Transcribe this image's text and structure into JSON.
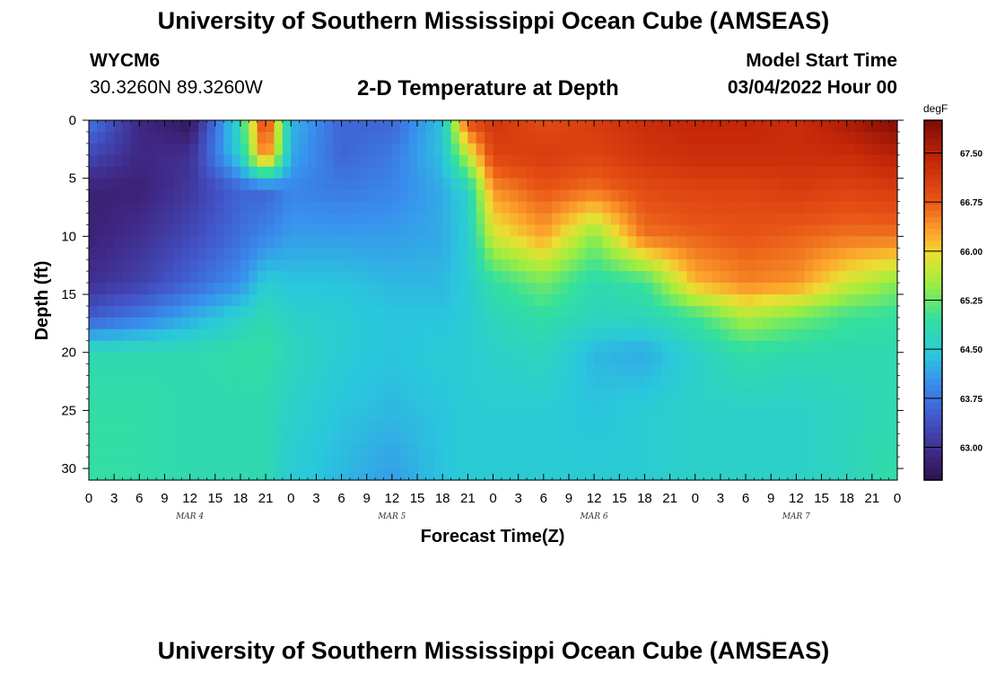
{
  "header": {
    "title": "University of Southern Mississippi Ocean Cube (AMSEAS)",
    "station": "WYCM6",
    "coordinates": "30.3260N  89.3260W",
    "plot_title": "2-D Temperature at Depth",
    "model_start_label": "Model Start Time",
    "model_start_value": "03/04/2022 Hour 00"
  },
  "footer": {
    "title": "University of Southern Mississippi Ocean Cube (AMSEAS)"
  },
  "chart_data": {
    "type": "heatmap",
    "title": "2-D Temperature at Depth",
    "xlabel": "Forecast Time(Z)",
    "ylabel": "Depth (ft)",
    "x_hours_range": [
      0,
      96
    ],
    "x_tick_step_hours": 3,
    "x_tick_labels": [
      "0",
      "3",
      "6",
      "9",
      "12",
      "15",
      "18",
      "21",
      "0",
      "3",
      "6",
      "9",
      "12",
      "15",
      "18",
      "21",
      "0",
      "3",
      "6",
      "9",
      "12",
      "15",
      "18",
      "21",
      "0",
      "3",
      "6",
      "9",
      "12",
      "15",
      "18",
      "21",
      "0"
    ],
    "day_labels": [
      {
        "label": "MAR 4",
        "hour": 12
      },
      {
        "label": "MAR 5",
        "hour": 36
      },
      {
        "label": "MAR 6",
        "hour": 60
      },
      {
        "label": "MAR 7",
        "hour": 84
      }
    ],
    "ylim": [
      0,
      31
    ],
    "y_tick_values": [
      0,
      5,
      10,
      15,
      20,
      25,
      30
    ],
    "y_tick_labels": [
      "0",
      "5",
      "10",
      "15",
      "20",
      "25",
      "30"
    ],
    "colorbar": {
      "unit": "degF",
      "range": [
        62.5,
        68.0
      ],
      "ticks": [
        63.0,
        63.75,
        64.5,
        65.25,
        66.0,
        66.75,
        67.5
      ],
      "tick_labels": [
        "63.00",
        "63.75",
        "64.50",
        "65.25",
        "66.00",
        "66.75",
        "67.50"
      ]
    },
    "grid_hours": [
      0,
      6,
      12,
      18,
      21,
      24,
      30,
      36,
      42,
      45,
      48,
      54,
      60,
      66,
      72,
      78,
      84,
      90,
      96
    ],
    "grid_depths": [
      0,
      3,
      6,
      10,
      14,
      17,
      20,
      25,
      31
    ],
    "values": [
      [
        63.8,
        62.9,
        62.6,
        64.8,
        67.2,
        64.3,
        63.6,
        63.6,
        64.4,
        66.9,
        67.2,
        66.9,
        67.1,
        67.3,
        67.4,
        67.4,
        67.3,
        67.6,
        68.0
      ],
      [
        63.3,
        62.9,
        63.0,
        64.6,
        66.7,
        64.2,
        63.6,
        63.8,
        64.4,
        65.7,
        67.0,
        67.1,
        67.0,
        67.2,
        67.3,
        67.3,
        67.3,
        67.3,
        67.5
      ],
      [
        62.8,
        62.8,
        63.1,
        63.6,
        63.6,
        63.9,
        63.8,
        63.9,
        64.2,
        64.6,
        66.4,
        66.8,
        66.6,
        66.9,
        67.0,
        67.0,
        67.1,
        67.0,
        67.1
      ],
      [
        62.8,
        63.0,
        63.3,
        63.7,
        63.9,
        64.1,
        64.1,
        64.1,
        64.2,
        64.5,
        65.8,
        66.3,
        65.4,
        66.6,
        66.7,
        66.8,
        66.7,
        66.6,
        66.6
      ],
      [
        63.0,
        63.2,
        63.6,
        64.0,
        64.5,
        64.4,
        64.4,
        64.3,
        64.3,
        64.5,
        64.9,
        65.3,
        64.8,
        65.0,
        66.2,
        66.5,
        66.4,
        65.8,
        65.4
      ],
      [
        63.5,
        63.8,
        64.2,
        64.6,
        64.8,
        64.6,
        64.5,
        64.4,
        64.4,
        64.5,
        64.7,
        64.9,
        64.7,
        64.7,
        65.0,
        65.6,
        65.3,
        65.0,
        64.9
      ],
      [
        64.8,
        64.8,
        64.8,
        64.9,
        64.9,
        64.7,
        64.5,
        64.4,
        64.5,
        64.5,
        64.6,
        64.7,
        64.3,
        64.2,
        64.6,
        64.9,
        64.8,
        64.8,
        64.8
      ],
      [
        64.9,
        64.9,
        64.8,
        64.8,
        64.8,
        64.6,
        64.4,
        64.3,
        64.4,
        64.5,
        64.5,
        64.5,
        64.4,
        64.5,
        64.6,
        64.6,
        64.6,
        64.7,
        64.8
      ],
      [
        64.9,
        64.9,
        64.8,
        64.8,
        64.8,
        64.5,
        64.3,
        64.1,
        64.4,
        64.5,
        64.5,
        64.5,
        64.5,
        64.5,
        64.6,
        64.6,
        64.6,
        64.7,
        64.9
      ]
    ]
  }
}
